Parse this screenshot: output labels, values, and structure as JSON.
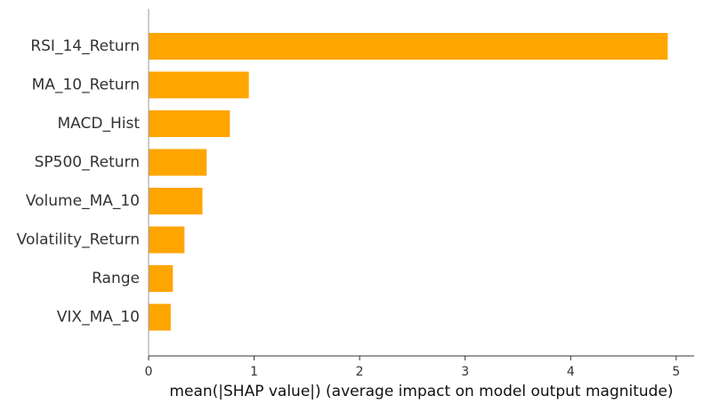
{
  "chart_data": {
    "type": "bar",
    "orientation": "horizontal",
    "categories": [
      "RSI_14_Return",
      "MA_10_Return",
      "MACD_Hist",
      "SP500_Return",
      "Volume_MA_10",
      "Volatility_Return",
      "Range",
      "VIX_MA_10"
    ],
    "values": [
      4.92,
      0.95,
      0.77,
      0.55,
      0.51,
      0.34,
      0.23,
      0.21
    ],
    "xlabel": "mean(|SHAP value|) (average impact on model output magnitude)",
    "ylabel": "",
    "title": "",
    "xlim": [
      0,
      5.17
    ],
    "xticks": [
      "0",
      "1",
      "2",
      "3",
      "4",
      "5"
    ],
    "grid": false,
    "legend": "none",
    "colors": {
      "bar": "#FFA500",
      "axis": "#333333",
      "text": "#333333"
    }
  }
}
